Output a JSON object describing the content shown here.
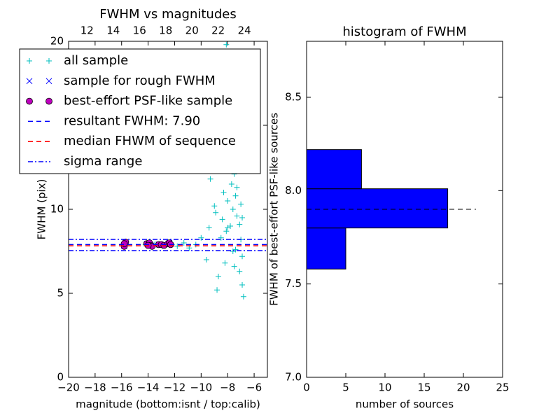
{
  "chart_data": [
    {
      "type": "scatter",
      "title": "FWHM vs magnitudes",
      "xlabel": "magnitude (bottom:isnt / top:calib)",
      "ylabel": "FWHM (pix)",
      "xlim": [
        -20,
        -5
      ],
      "xticks": [
        {
          "value": -20,
          "label": "−20"
        },
        {
          "value": -18,
          "label": "−18"
        },
        {
          "value": -16,
          "label": "−16"
        },
        {
          "value": -14,
          "label": "−14"
        },
        {
          "value": -12,
          "label": "−12"
        },
        {
          "value": -10,
          "label": "−10"
        },
        {
          "value": -8,
          "label": "−8"
        },
        {
          "value": -6,
          "label": "−6"
        }
      ],
      "x2lim": [
        10.6,
        25.75
      ],
      "x2ticks": [
        12,
        14,
        16,
        18,
        20,
        22,
        24
      ],
      "ylim": [
        0,
        20
      ],
      "yticks": [
        0,
        5,
        10,
        15,
        20
      ],
      "series": [
        {
          "name": "all sample",
          "color": "#00bfbf",
          "marker": "+",
          "x": [
            -15.8,
            -14.2,
            -13.5,
            -12.9,
            -12.2,
            -11.8,
            -11.3,
            -10.9,
            -10.4,
            -10.0,
            -9.6,
            -9.3,
            -9.0,
            -8.8,
            -8.6,
            -8.4,
            -8.3,
            -8.2,
            -8.1,
            -8.0,
            -7.9,
            -7.8,
            -7.7,
            -7.6,
            -7.5,
            -7.4,
            -7.3,
            -7.2,
            -7.1,
            -7.0,
            -6.9,
            -6.8,
            -8.5,
            -8.2,
            -7.9,
            -7.6,
            -7.3,
            -7.1,
            -6.9,
            -8.7,
            -8.0,
            -7.7,
            -7.4,
            -7.0,
            -9.4,
            -8.9,
            -7.5,
            -6.9,
            -8.1,
            -7.2
          ],
          "values": [
            8.0,
            7.9,
            7.9,
            7.8,
            7.9,
            7.8,
            8.0,
            7.7,
            7.9,
            8.3,
            7.0,
            11.8,
            10.2,
            5.2,
            13.2,
            9.4,
            11.0,
            12.5,
            8.7,
            10.5,
            14.0,
            9.0,
            11.5,
            7.5,
            12.1,
            10.8,
            9.6,
            13.6,
            6.3,
            8.2,
            5.5,
            4.8,
            8.3,
            6.8,
            12.9,
            10.0,
            11.3,
            9.1,
            7.2,
            6.0,
            8.9,
            13.0,
            7.6,
            10.3,
            8.9,
            9.8,
            6.6,
            9.5,
            19.8,
            12.4
          ]
        },
        {
          "name": "sample for rough FWHM",
          "color": "#0000ff",
          "marker": "x",
          "x": [
            -15.8,
            -14.1,
            -13.8,
            -13.2,
            -12.4
          ],
          "values": [
            7.8,
            7.95,
            7.85,
            7.9,
            8.0
          ]
        },
        {
          "name": "best-effort PSF-like sample",
          "color": "#bf00bf",
          "marker": "o",
          "x": [
            -15.8,
            -15.7,
            -14.1,
            -13.9,
            -13.8,
            -13.7,
            -13.2,
            -13.0,
            -12.8,
            -12.5,
            -12.4,
            -12.3,
            -15.8,
            -14.0
          ],
          "values": [
            7.8,
            8.05,
            7.95,
            8.0,
            7.85,
            7.8,
            7.9,
            7.9,
            7.85,
            7.95,
            8.0,
            7.9,
            7.95,
            7.85
          ]
        },
        {
          "name": "resultant FWHM: 7.90",
          "color": "#0000ff",
          "marker": "hline",
          "dash": "dashed",
          "values": [
            7.9
          ]
        },
        {
          "name": "median FHWM of sequence",
          "color": "#ff0000",
          "marker": "hline",
          "dash": "dashed",
          "values": [
            7.83
          ]
        },
        {
          "name": "sigma range",
          "color": "#0000ff",
          "marker": "hline",
          "dash": "dashdot",
          "values": [
            7.54,
            8.21
          ]
        }
      ]
    },
    {
      "type": "histogram",
      "title": "histogram of FWHM",
      "orientation": "horizontal",
      "xlabel": "number of sources",
      "ylabel": "FWHM of best-effort PSF-like sources",
      "xlim": [
        0,
        25
      ],
      "xticks": [
        0,
        5,
        10,
        15,
        20,
        25
      ],
      "ylim": [
        7.0,
        8.8
      ],
      "yticks": [
        {
          "value": 7,
          "label": "7.0"
        },
        7.5,
        {
          "value": 8,
          "label": "8.0"
        },
        8.5
      ],
      "bins": [
        7.58,
        7.8,
        8.01,
        8.22
      ],
      "values": [
        5,
        18,
        7
      ],
      "color": "#0000ff",
      "reference_line": {
        "y": 7.9,
        "xmax": 21.6,
        "color": "#000000",
        "dash": "dashed"
      }
    }
  ]
}
